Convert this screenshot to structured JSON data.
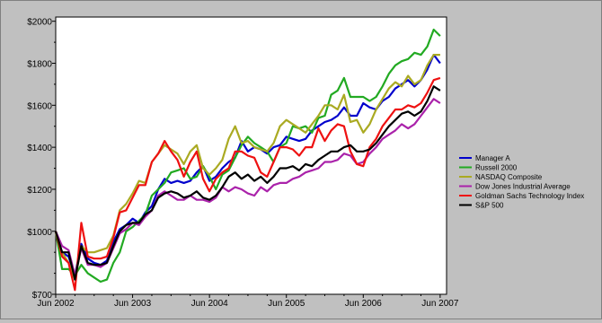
{
  "chart_data": {
    "type": "line",
    "title": "",
    "xlabel": "",
    "ylabel": "",
    "ylim": [
      700,
      2020
    ],
    "y_ticks": [
      700,
      1000,
      1200,
      1400,
      1600,
      1800,
      2000
    ],
    "y_tick_labels": [
      "$700",
      "$1000",
      "$1200",
      "$1400",
      "$1600",
      "$1800",
      "$2000"
    ],
    "x_ticks": [
      0,
      12,
      24,
      36,
      48,
      60
    ],
    "x_tick_labels": [
      "Jun 2002",
      "Jun 2003",
      "Jun 2004",
      "Jun 2005",
      "Jun 2006",
      "Jun 2007"
    ],
    "x_range": [
      0,
      61
    ],
    "grid": false,
    "legend_position": "right",
    "series": [
      {
        "name": "Manager A",
        "color": "#0000cc",
        "values": [
          1000,
          900,
          880,
          790,
          940,
          870,
          850,
          840,
          860,
          950,
          1010,
          1030,
          1060,
          1040,
          1090,
          1120,
          1200,
          1250,
          1230,
          1240,
          1230,
          1240,
          1280,
          1310,
          1240,
          1260,
          1300,
          1330,
          1350,
          1430,
          1380,
          1400,
          1390,
          1370,
          1400,
          1410,
          1450,
          1440,
          1430,
          1440,
          1480,
          1500,
          1520,
          1530,
          1550,
          1590,
          1550,
          1550,
          1610,
          1590,
          1580,
          1620,
          1640,
          1680,
          1700,
          1720,
          1690,
          1720,
          1770,
          1840,
          1800
        ]
      },
      {
        "name": "Russell 2000",
        "color": "#22aa22",
        "values": [
          1000,
          820,
          820,
          790,
          840,
          800,
          780,
          760,
          770,
          850,
          900,
          1000,
          1020,
          1050,
          1080,
          1170,
          1200,
          1230,
          1280,
          1290,
          1300,
          1250,
          1260,
          1310,
          1260,
          1200,
          1270,
          1290,
          1350,
          1410,
          1450,
          1420,
          1400,
          1380,
          1330,
          1400,
          1420,
          1500,
          1490,
          1500,
          1470,
          1540,
          1550,
          1650,
          1670,
          1730,
          1640,
          1640,
          1640,
          1620,
          1640,
          1690,
          1750,
          1790,
          1810,
          1820,
          1850,
          1840,
          1880,
          1960,
          1930
        ]
      },
      {
        "name": "NASDAQ Composite",
        "color": "#aaaa22",
        "values": [
          1000,
          900,
          850,
          770,
          930,
          900,
          900,
          910,
          920,
          980,
          1100,
          1130,
          1180,
          1240,
          1230,
          1330,
          1370,
          1410,
          1390,
          1370,
          1320,
          1380,
          1410,
          1300,
          1270,
          1300,
          1340,
          1440,
          1500,
          1420,
          1430,
          1400,
          1390,
          1380,
          1420,
          1500,
          1530,
          1510,
          1490,
          1470,
          1510,
          1550,
          1600,
          1600,
          1580,
          1650,
          1520,
          1530,
          1470,
          1510,
          1580,
          1630,
          1680,
          1710,
          1690,
          1740,
          1700,
          1720,
          1790,
          1840,
          1840
        ]
      },
      {
        "name": "Dow Jones Industrial Average",
        "color": "#aa22aa",
        "values": [
          1000,
          930,
          910,
          790,
          920,
          840,
          840,
          830,
          850,
          920,
          990,
          1010,
          1040,
          1030,
          1070,
          1100,
          1170,
          1190,
          1170,
          1150,
          1150,
          1170,
          1150,
          1150,
          1140,
          1160,
          1210,
          1190,
          1210,
          1200,
          1180,
          1170,
          1210,
          1190,
          1220,
          1230,
          1230,
          1250,
          1260,
          1280,
          1290,
          1300,
          1330,
          1330,
          1340,
          1370,
          1360,
          1320,
          1330,
          1370,
          1400,
          1440,
          1460,
          1480,
          1510,
          1490,
          1510,
          1550,
          1590,
          1630,
          1610
        ]
      },
      {
        "name": "Goldman Sachs Technology Index",
        "color": "#ee1111",
        "values": [
          1000,
          880,
          850,
          720,
          1040,
          880,
          870,
          870,
          880,
          970,
          1090,
          1100,
          1160,
          1220,
          1220,
          1330,
          1370,
          1430,
          1380,
          1340,
          1260,
          1330,
          1380,
          1250,
          1190,
          1250,
          1280,
          1300,
          1380,
          1380,
          1360,
          1350,
          1280,
          1260,
          1330,
          1400,
          1400,
          1390,
          1360,
          1400,
          1400,
          1490,
          1430,
          1480,
          1510,
          1500,
          1380,
          1320,
          1310,
          1400,
          1440,
          1500,
          1540,
          1580,
          1580,
          1600,
          1590,
          1610,
          1660,
          1720,
          1730
        ]
      },
      {
        "name": "S&P 500",
        "color": "#000000",
        "values": [
          1000,
          900,
          900,
          770,
          930,
          850,
          840,
          840,
          850,
          930,
          1000,
          1030,
          1040,
          1040,
          1080,
          1100,
          1160,
          1180,
          1190,
          1180,
          1160,
          1170,
          1190,
          1160,
          1150,
          1170,
          1210,
          1260,
          1280,
          1250,
          1270,
          1240,
          1260,
          1230,
          1260,
          1300,
          1300,
          1310,
          1290,
          1320,
          1310,
          1340,
          1360,
          1380,
          1380,
          1400,
          1410,
          1380,
          1380,
          1390,
          1420,
          1460,
          1500,
          1530,
          1560,
          1570,
          1550,
          1570,
          1620,
          1690,
          1670
        ]
      }
    ]
  }
}
